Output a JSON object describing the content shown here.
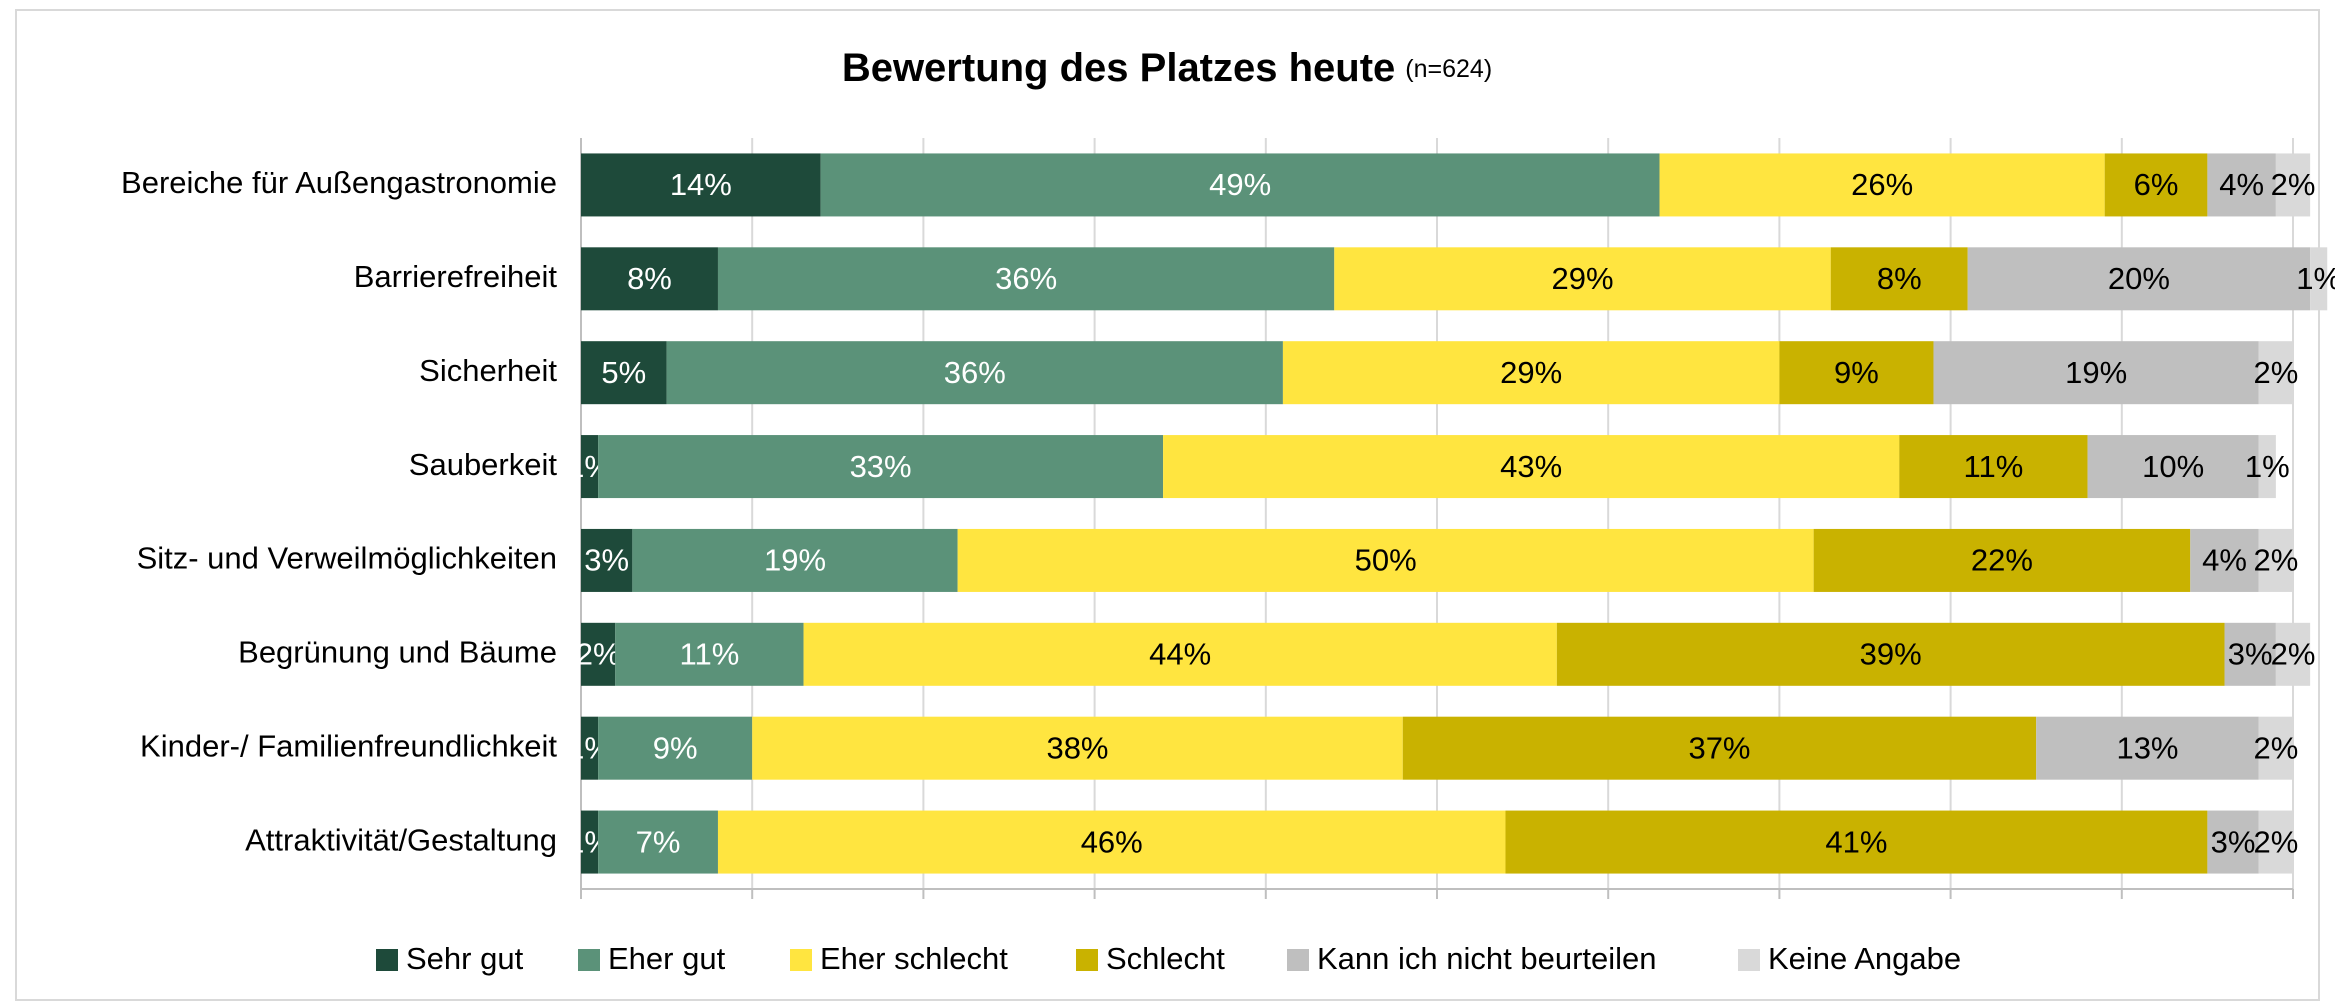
{
  "chart_data": {
    "type": "stacked_barh",
    "title": "Bewertung des Platzes heute",
    "subtitle": "(n=624)",
    "categories": [
      "Bereiche für Außengastronomie",
      "Barrierefreiheit",
      "Sicherheit",
      "Sauberkeit",
      "Sitz- und Verweilmöglichkeiten",
      "Begrünung und Bäume",
      "Kinder-/ Familienfreundlichkeit",
      "Attraktivität/Gestaltung"
    ],
    "series": [
      {
        "name": "Sehr gut",
        "color": "#1e4a3a",
        "values": [
          14,
          8,
          5,
          1,
          3,
          2,
          1,
          1
        ],
        "value_labels": [
          "14%",
          "8%",
          "5%",
          "1%",
          "3%",
          "2%",
          "1%",
          "1%"
        ]
      },
      {
        "name": "Eher gut",
        "color": "#5b9279",
        "values": [
          49,
          36,
          36,
          33,
          19,
          11,
          9,
          7
        ],
        "value_labels": [
          "49%",
          "36%",
          "36%",
          "33%",
          "19%",
          "11%",
          "9%",
          "7%"
        ]
      },
      {
        "name": "Eher schlecht",
        "color": "#ffe540",
        "values": [
          26,
          29,
          29,
          43,
          50,
          44,
          38,
          46
        ],
        "value_labels": [
          "26%",
          "29%",
          "29%",
          "43%",
          "50%",
          "44%",
          "38%",
          "46%"
        ]
      },
      {
        "name": "Schlecht",
        "color": "#c9b200",
        "values": [
          6,
          8,
          9,
          11,
          22,
          39,
          37,
          41
        ],
        "value_labels": [
          "6%",
          "8%",
          "9%",
          "11%",
          "22%",
          "39%",
          "37%",
          "41%"
        ]
      },
      {
        "name": "Kann ich nicht beurteilen",
        "color": "#bfbfbf",
        "values": [
          4,
          20,
          19,
          10,
          4,
          3,
          13,
          3
        ],
        "value_labels": [
          "4%",
          "20%",
          "19%",
          "10%",
          "4%",
          "3%",
          "13%",
          "3%"
        ]
      },
      {
        "name": "Keine Angabe",
        "color": "#d9d9d9",
        "values": [
          2,
          1,
          2,
          1,
          2,
          2,
          2,
          2
        ],
        "value_labels": [
          "2%",
          "1%",
          "2%",
          "1%",
          "2%",
          "2%",
          "2%",
          "2%"
        ]
      }
    ],
    "xlim": [
      0,
      100
    ],
    "xticks": [
      0,
      10,
      20,
      30,
      40,
      50,
      60,
      70,
      80,
      90,
      100
    ],
    "grid": true,
    "legend": "bottom"
  }
}
